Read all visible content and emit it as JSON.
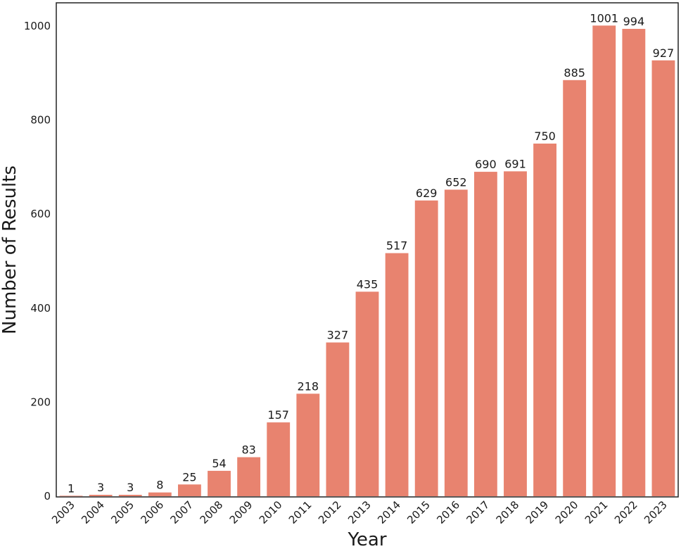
{
  "chart_data": {
    "type": "bar",
    "title": "",
    "xlabel": "Year",
    "ylabel": "Number  of Results",
    "categories": [
      "2003",
      "2004",
      "2005",
      "2006",
      "2007",
      "2008",
      "2009",
      "2010",
      "2011",
      "2012",
      "2013",
      "2014",
      "2015",
      "2016",
      "2017",
      "2018",
      "2019",
      "2020",
      "2021",
      "2022",
      "2023"
    ],
    "values": [
      1,
      3,
      3,
      8,
      25,
      54,
      83,
      157,
      218,
      327,
      435,
      517,
      629,
      652,
      690,
      691,
      750,
      885,
      1001,
      994,
      927
    ],
    "ylim": [
      0,
      1000
    ],
    "yticks": [
      0,
      200,
      400,
      600,
      800,
      1000
    ],
    "grid": false,
    "legend": "none",
    "bar_color": "#e8836f"
  }
}
